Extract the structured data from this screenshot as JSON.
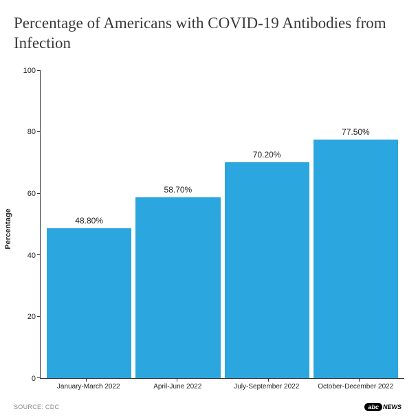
{
  "chart": {
    "type": "bar",
    "title": "Percentage of Americans with COVID-19 Antibodies from Infection",
    "title_fontsize": 23,
    "title_color": "#3a3a3a",
    "y_axis_label": "Percentage",
    "label_fontsize": 11,
    "ylim": [
      0,
      100
    ],
    "ytick_step": 20,
    "yticks": [
      0,
      20,
      40,
      60,
      80,
      100
    ],
    "categories": [
      "January-March 2022",
      "April-June 2022",
      "July-September 2022",
      "October-December 2022"
    ],
    "values": [
      48.8,
      58.7,
      70.2,
      77.5
    ],
    "value_labels": [
      "48.80%",
      "58.70%",
      "70.20%",
      "77.50%"
    ],
    "bar_color": "#2ca6df",
    "axis_color": "#333333",
    "text_color": "#222222",
    "background_color": "#ffffff",
    "bar_width": 0.92,
    "x_label_fontsize": 10,
    "value_label_fontsize": 12
  },
  "footer": {
    "source": "SOURCE: CDC",
    "logo_abc": "abc",
    "logo_news": "NEWS"
  }
}
